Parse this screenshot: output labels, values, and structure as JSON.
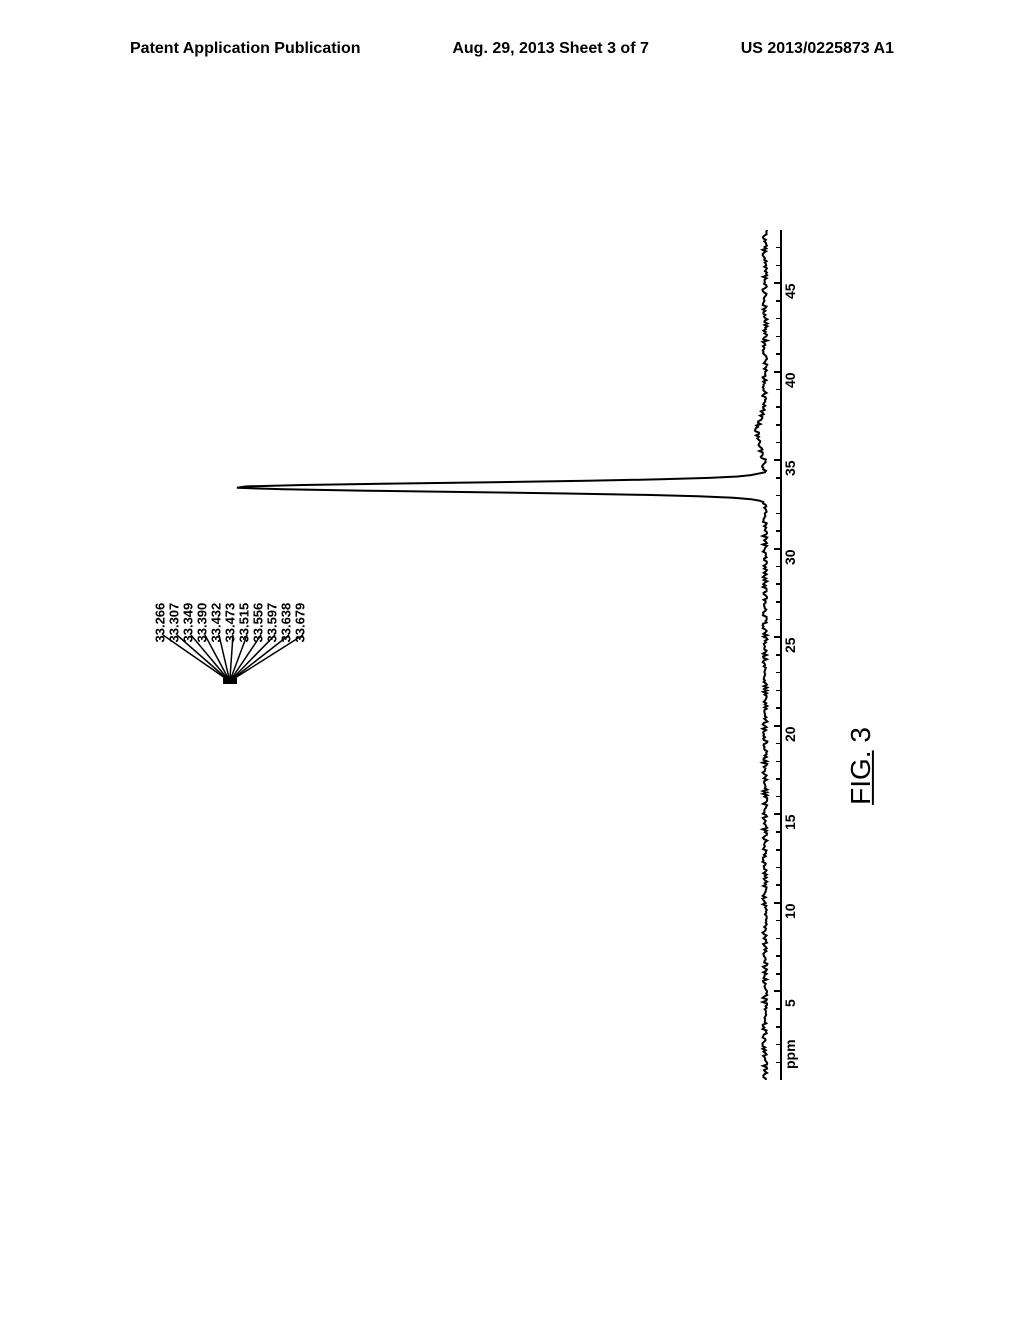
{
  "header": {
    "left": "Patent Application Publication",
    "center": "Aug. 29, 2013  Sheet 3 of 7",
    "right": "US 2013/0225873 A1"
  },
  "figure": {
    "caption_prefix": "FIG.",
    "caption_number": " 3",
    "spectrum": {
      "type": "nmr_spectrum",
      "x_axis": {
        "unit": "ppm",
        "min": 0,
        "max": 48,
        "major_ticks": [
          5,
          10,
          15,
          20,
          25,
          30,
          35,
          40,
          45
        ],
        "tick_labels": [
          "5",
          "10",
          "15",
          "20",
          "25",
          "30",
          "35",
          "40",
          "45"
        ]
      },
      "peak_values": [
        "33.266",
        "33.307",
        "33.349",
        "33.390",
        "33.432",
        "33.473",
        "33.515",
        "33.556",
        "33.597",
        "33.638",
        "33.679"
      ],
      "peak_center_ppm": 33.47,
      "baseline_color": "#000000",
      "peak_color": "#000000",
      "line_width": 1.5,
      "background_color": "#ffffff"
    }
  }
}
